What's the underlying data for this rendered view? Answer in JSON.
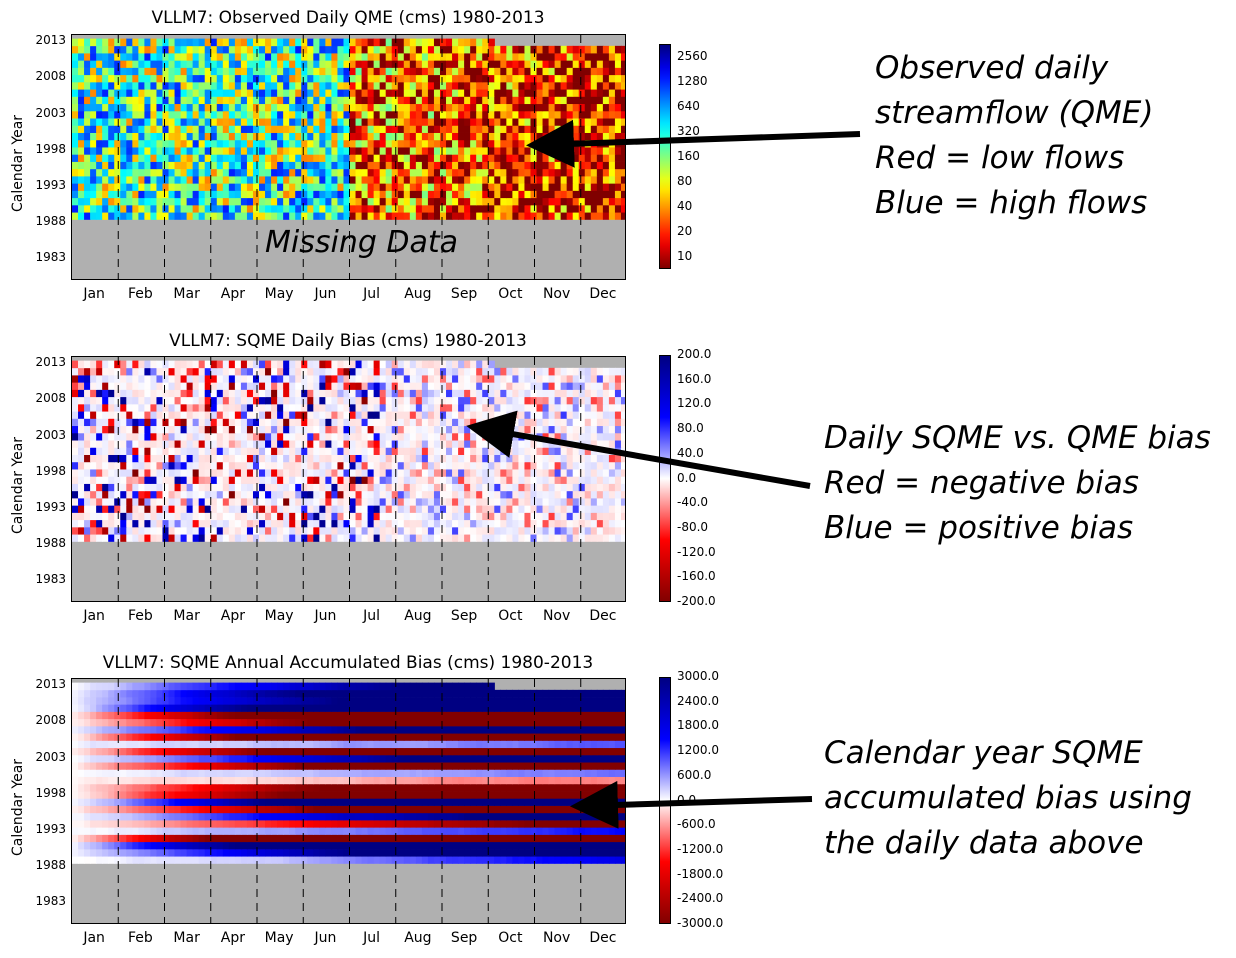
{
  "chart_data": [
    {
      "type": "heatmap",
      "title": "VLLM7: Observed Daily QME (cms) 1980-2013",
      "ylabel": "Calendar Year",
      "y_ticks": [
        "2013",
        "2008",
        "2003",
        "1998",
        "1993",
        "1988",
        "1983"
      ],
      "x_ticks": [
        "Jan",
        "Feb",
        "Mar",
        "Apr",
        "May",
        "Jun",
        "Jul",
        "Aug",
        "Sep",
        "Oct",
        "Nov",
        "Dec"
      ],
      "ylim": [
        1980,
        2013
      ],
      "data_years": [
        1989,
        2013
      ],
      "colorbar_ticks": [
        "2560",
        "1280",
        "640",
        "320",
        "160",
        "80",
        "40",
        "20",
        "10"
      ],
      "colorscale": "jet_reversed_log",
      "annotation": "Missing Data",
      "missing_color": "#b0b0b0"
    },
    {
      "type": "heatmap",
      "title": "VLLM7: SQME Daily Bias (cms) 1980-2013",
      "ylabel": "Calendar Year",
      "y_ticks": [
        "2013",
        "2008",
        "2003",
        "1998",
        "1993",
        "1988",
        "1983"
      ],
      "x_ticks": [
        "Jan",
        "Feb",
        "Mar",
        "Apr",
        "May",
        "Jun",
        "Jul",
        "Aug",
        "Sep",
        "Oct",
        "Nov",
        "Dec"
      ],
      "ylim": [
        1980,
        2013
      ],
      "data_years": [
        1989,
        2013
      ],
      "colorbar_ticks": [
        "200.0",
        "160.0",
        "120.0",
        "80.0",
        "40.0",
        "0.0",
        "-40.0",
        "-80.0",
        "-120.0",
        "-160.0",
        "-200.0"
      ],
      "colorscale": "seismic_reversed",
      "missing_color": "#b0b0b0"
    },
    {
      "type": "heatmap",
      "title": "VLLM7: SQME Annual Accumulated Bias (cms) 1980-2013",
      "ylabel": "Calendar Year",
      "y_ticks": [
        "2013",
        "2008",
        "2003",
        "1998",
        "1993",
        "1988",
        "1983"
      ],
      "x_ticks": [
        "Jan",
        "Feb",
        "Mar",
        "Apr",
        "May",
        "Jun",
        "Jul",
        "Aug",
        "Sep",
        "Oct",
        "Nov",
        "Dec"
      ],
      "ylim": [
        1980,
        2013
      ],
      "data_years": [
        1989,
        2013
      ],
      "colorbar_ticks": [
        "3000.0",
        "2400.0",
        "1800.0",
        "1200.0",
        "600.0",
        "0.0",
        "-600.0",
        "-1200.0",
        "-1800.0",
        "-2400.0",
        "-3000.0"
      ],
      "colorscale": "seismic_reversed",
      "missing_color": "#b0b0b0"
    }
  ],
  "notes": {
    "n1": [
      "Observed daily",
      "streamflow (QME)",
      "Red = low flows",
      "Blue = high flows"
    ],
    "n2": [
      "Daily SQME vs. QME bias",
      "Red = negative bias",
      "Blue = positive bias"
    ],
    "n3": [
      "Calendar year SQME",
      "accumulated bias using",
      "the daily data above"
    ]
  }
}
